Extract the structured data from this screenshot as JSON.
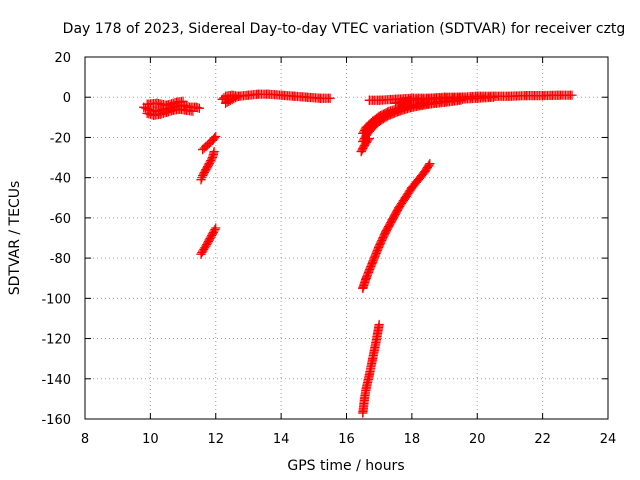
{
  "chart_data": {
    "type": "scatter",
    "title": "Day 178 of 2023, Sidereal Day-to-day VTEC variation (SDTVAR) for receiver cztg",
    "xlabel": "GPS time / hours",
    "ylabel": "SDTVAR / TECUs",
    "xlim": [
      8,
      24
    ],
    "ylim": [
      -160,
      20
    ],
    "xticks": [
      "8",
      "10",
      "12",
      "14",
      "16",
      "18",
      "20",
      "22",
      "24"
    ],
    "yticks": [
      "20",
      "0",
      "-20",
      "-40",
      "-60",
      "-80",
      "-100",
      "-120",
      "-140",
      "-160"
    ],
    "grid": true,
    "marker": "plus",
    "color": "#ff0000",
    "series": [
      {
        "x": [
          9.8,
          10.0,
          10.2,
          10.4,
          10.6,
          10.8,
          11.0,
          11.2,
          11.4,
          11.5
        ],
        "y": [
          -5.0,
          -6.5,
          -7.0,
          -6.0,
          -5.5,
          -4.5,
          -4.0,
          -5.0,
          -5.0,
          -5.5
        ]
      },
      {
        "x": [
          9.9,
          10.1,
          10.3,
          10.5,
          10.7,
          10.9,
          11.1,
          11.3
        ],
        "y": [
          -8.0,
          -9.0,
          -8.5,
          -7.5,
          -6.5,
          -6.0,
          -6.5,
          -7.0
        ]
      },
      {
        "x": [
          9.9,
          10.2,
          10.5,
          10.8,
          11.0
        ],
        "y": [
          -3.5,
          -3.0,
          -4.0,
          -2.5,
          -2.0
        ]
      },
      {
        "x": [
          11.6,
          11.7,
          11.8,
          11.9,
          12.0
        ],
        "y": [
          -26.0,
          -24.5,
          -23.0,
          -21.5,
          -19.5
        ]
      },
      {
        "x": [
          11.55,
          11.6,
          11.7,
          11.75,
          11.8,
          11.85,
          11.9,
          11.95
        ],
        "y": [
          -41.0,
          -39.0,
          -36.0,
          -34.5,
          -33.0,
          -31.5,
          -30.0,
          -27.0
        ]
      },
      {
        "x": [
          11.55,
          11.6,
          11.7,
          11.8,
          11.9,
          12.0
        ],
        "y": [
          -78.0,
          -76.5,
          -74.0,
          -71.0,
          -68.0,
          -65.0
        ]
      },
      {
        "x": [
          12.3,
          12.4,
          12.5,
          12.7,
          13.0,
          13.3,
          13.6,
          14.0,
          14.4,
          14.8,
          15.2,
          15.5
        ],
        "y": [
          -3.0,
          -2.0,
          -1.0,
          0.5,
          1.0,
          1.5,
          1.5,
          1.0,
          0.5,
          0.0,
          -0.5,
          -0.5
        ]
      },
      {
        "x": [
          12.2,
          12.3,
          12.5,
          12.7
        ],
        "y": [
          -1.0,
          0.5,
          1.0,
          0.5
        ]
      },
      {
        "x": [
          16.7,
          17.0,
          17.5,
          18.0,
          18.5,
          19.0,
          19.5,
          20.0,
          20.5,
          21.0,
          21.5,
          22.0,
          22.5,
          22.9
        ],
        "y": [
          -1.5,
          -1.5,
          -1.0,
          -0.5,
          -0.5,
          0.0,
          0.0,
          0.5,
          0.5,
          0.5,
          0.8,
          0.8,
          1.0,
          1.0
        ]
      },
      {
        "x": [
          16.5,
          16.6,
          16.8,
          17.0,
          17.3,
          17.6,
          18.0,
          18.5,
          19.0,
          19.5,
          20.0,
          20.5
        ],
        "y": [
          -18.0,
          -15.0,
          -12.0,
          -9.5,
          -7.0,
          -5.5,
          -4.0,
          -3.0,
          -2.0,
          -1.0,
          -0.5,
          0.0
        ]
      },
      {
        "x": [
          16.5,
          16.6,
          16.8,
          17.0,
          17.3,
          17.6,
          18.0,
          18.5,
          19.0,
          19.5
        ],
        "y": [
          -22.0,
          -19.0,
          -15.0,
          -12.0,
          -9.0,
          -7.0,
          -5.0,
          -3.5,
          -2.5,
          -1.5
        ]
      },
      {
        "x": [
          16.45,
          16.5,
          16.55,
          16.6,
          16.7
        ],
        "y": [
          -27.0,
          -25.5,
          -24.0,
          -22.5,
          -20.5
        ]
      },
      {
        "x": [
          17.5,
          18.0,
          18.5,
          19.0,
          19.5
        ],
        "y": [
          -3.0,
          -1.5,
          -1.0,
          -0.5,
          0.0
        ]
      },
      {
        "x": [
          16.5,
          16.6,
          16.8,
          17.0,
          17.2,
          17.4,
          17.6,
          17.8,
          18.0,
          18.2,
          18.4,
          18.55
        ],
        "y": [
          -95.0,
          -90.0,
          -82.0,
          -74.0,
          -67.0,
          -61.0,
          -55.0,
          -50.0,
          -45.0,
          -41.0,
          -37.0,
          -33.0
        ]
      },
      {
        "x": [
          16.5,
          16.55,
          16.6,
          16.7,
          16.8,
          16.9,
          17.0
        ],
        "y": [
          -157.0,
          -150.0,
          -145.0,
          -138.0,
          -130.0,
          -122.0,
          -113.0
        ]
      }
    ]
  }
}
